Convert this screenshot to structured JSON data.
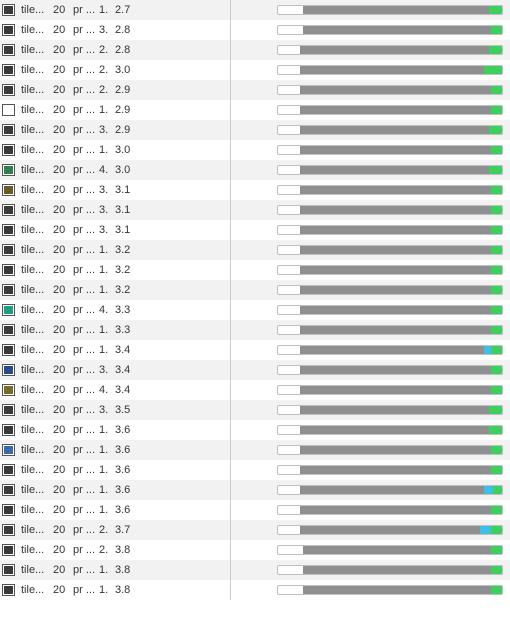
{
  "colors": {
    "row_alt_bg": "#f2f2f2",
    "bar_border": "#bfbfbf",
    "bar_grey": "#8f8f8f",
    "bar_green": "#3fcf5f",
    "bar_blue": "#3fbfe8",
    "divider": "#c8c8d8"
  },
  "columns": [
    "icon",
    "name",
    "date",
    "app",
    "c4",
    "c5",
    "progress"
  ],
  "rows": [
    {
      "thumb": "#3a3a3a",
      "name": "tile...",
      "date": "20",
      "app": "pr ...",
      "c4": "1.",
      "c5": "2.7",
      "lead": 11,
      "grey": 83,
      "green": 6,
      "blue": 0
    },
    {
      "thumb": "#3a3a3a",
      "name": "tile...",
      "date": "20",
      "app": "pr ...",
      "c4": "3.",
      "c5": "2.8",
      "lead": 11,
      "grey": 84,
      "green": 5,
      "blue": 0
    },
    {
      "thumb": "#3a3a3a",
      "name": "tile...",
      "date": "20",
      "app": "pr ...",
      "c4": "2.",
      "c5": "2.8",
      "lead": 10,
      "grey": 84,
      "green": 6,
      "blue": 0
    },
    {
      "thumb": "#3a3a3a",
      "name": "tile...",
      "date": "20",
      "app": "pr ...",
      "c4": "2.",
      "c5": "3.0",
      "lead": 10,
      "grey": 82,
      "green": 8,
      "blue": 0
    },
    {
      "thumb": "#3a3a3a",
      "name": "tile...",
      "date": "20",
      "app": "pr ...",
      "c4": "2.",
      "c5": "2.9",
      "lead": 10,
      "grey": 85,
      "green": 5,
      "blue": 0
    },
    {
      "thumb": "#ffffff",
      "name": "tile...",
      "date": "20",
      "app": "pr ...",
      "c4": "1.",
      "c5": "2.9",
      "lead": 10,
      "grey": 85,
      "green": 5,
      "blue": 0
    },
    {
      "thumb": "#3a3a3a",
      "name": "tile...",
      "date": "20",
      "app": "pr ...",
      "c4": "3.",
      "c5": "2.9",
      "lead": 10,
      "grey": 84,
      "green": 6,
      "blue": 0
    },
    {
      "thumb": "#3a3a3a",
      "name": "tile...",
      "date": "20",
      "app": "pr ...",
      "c4": "1.",
      "c5": "3.0",
      "lead": 10,
      "grey": 85,
      "green": 5,
      "blue": 0
    },
    {
      "thumb": "#2e7e4e",
      "name": "tile...",
      "date": "20",
      "app": "pr ...",
      "c4": "4.",
      "c5": "3.0",
      "lead": 10,
      "grey": 84,
      "green": 6,
      "blue": 0
    },
    {
      "thumb": "#6b5a2a",
      "name": "tile...",
      "date": "20",
      "app": "pr ...",
      "c4": "3.",
      "c5": "3.1",
      "lead": 10,
      "grey": 85,
      "green": 5,
      "blue": 0
    },
    {
      "thumb": "#3a3a3a",
      "name": "tile...",
      "date": "20",
      "app": "pr ...",
      "c4": "3.",
      "c5": "3.1",
      "lead": 10,
      "grey": 85,
      "green": 5,
      "blue": 0
    },
    {
      "thumb": "#3a3a3a",
      "name": "tile...",
      "date": "20",
      "app": "pr ...",
      "c4": "3.",
      "c5": "3.1",
      "lead": 10,
      "grey": 85,
      "green": 5,
      "blue": 0
    },
    {
      "thumb": "#3a3a3a",
      "name": "tile...",
      "date": "20",
      "app": "pr ...",
      "c4": "1.",
      "c5": "3.2",
      "lead": 10,
      "grey": 85,
      "green": 5,
      "blue": 0
    },
    {
      "thumb": "#3a3a3a",
      "name": "tile...",
      "date": "20",
      "app": "pr ...",
      "c4": "1.",
      "c5": "3.2",
      "lead": 10,
      "grey": 85,
      "green": 5,
      "blue": 0
    },
    {
      "thumb": "#3a3a3a",
      "name": "tile...",
      "date": "20",
      "app": "pr ...",
      "c4": "1.",
      "c5": "3.2",
      "lead": 10,
      "grey": 85,
      "green": 5,
      "blue": 0
    },
    {
      "thumb": "#1e9e7e",
      "name": "tile...",
      "date": "20",
      "app": "pr ...",
      "c4": "4.",
      "c5": "3.3",
      "lead": 10,
      "grey": 85,
      "green": 5,
      "blue": 0
    },
    {
      "thumb": "#3a3a3a",
      "name": "tile...",
      "date": "20",
      "app": "pr ...",
      "c4": "1.",
      "c5": "3.3",
      "lead": 10,
      "grey": 85,
      "green": 5,
      "blue": 0
    },
    {
      "thumb": "#3a3a3a",
      "name": "tile...",
      "date": "20",
      "app": "pr ...",
      "c4": "1.",
      "c5": "3.4",
      "lead": 10,
      "grey": 82,
      "green": 5,
      "blue": 3
    },
    {
      "thumb": "#2a4a8a",
      "name": "tile...",
      "date": "20",
      "app": "pr ...",
      "c4": "3.",
      "c5": "3.4",
      "lead": 10,
      "grey": 85,
      "green": 5,
      "blue": 0
    },
    {
      "thumb": "#7a6a2a",
      "name": "tile...",
      "date": "20",
      "app": "pr ...",
      "c4": "4.",
      "c5": "3.4",
      "lead": 10,
      "grey": 85,
      "green": 5,
      "blue": 0
    },
    {
      "thumb": "#3a3a3a",
      "name": "tile...",
      "date": "20",
      "app": "pr ...",
      "c4": "3.",
      "c5": "3.5",
      "lead": 10,
      "grey": 84,
      "green": 6,
      "blue": 0
    },
    {
      "thumb": "#3a3a3a",
      "name": "tile...",
      "date": "20",
      "app": "pr ...",
      "c4": "1.",
      "c5": "3.6",
      "lead": 10,
      "grey": 84,
      "green": 6,
      "blue": 0
    },
    {
      "thumb": "#3a6aaa",
      "name": "tile...",
      "date": "20",
      "app": "pr ...",
      "c4": "1.",
      "c5": "3.6",
      "lead": 10,
      "grey": 85,
      "green": 5,
      "blue": 0
    },
    {
      "thumb": "#3a3a3a",
      "name": "tile...",
      "date": "20",
      "app": "pr ...",
      "c4": "1.",
      "c5": "3.6",
      "lead": 10,
      "grey": 85,
      "green": 5,
      "blue": 0
    },
    {
      "thumb": "#3a3a3a",
      "name": "tile...",
      "date": "20",
      "app": "pr ...",
      "c4": "1.",
      "c5": "3.6",
      "lead": 10,
      "grey": 82,
      "green": 4,
      "blue": 4
    },
    {
      "thumb": "#3a3a3a",
      "name": "tile...",
      "date": "20",
      "app": "pr ...",
      "c4": "1.",
      "c5": "3.6",
      "lead": 10,
      "grey": 85,
      "green": 5,
      "blue": 0
    },
    {
      "thumb": "#3a3a3a",
      "name": "tile...",
      "date": "20",
      "app": "pr ...",
      "c4": "2.",
      "c5": "3.7",
      "lead": 10,
      "grey": 80,
      "green": 5,
      "blue": 5
    },
    {
      "thumb": "#3a3a3a",
      "name": "tile...",
      "date": "20",
      "app": "pr ...",
      "c4": "2.",
      "c5": "3.8",
      "lead": 11,
      "grey": 84,
      "green": 5,
      "blue": 0
    },
    {
      "thumb": "#3a3a3a",
      "name": "tile...",
      "date": "20",
      "app": "pr ...",
      "c4": "1.",
      "c5": "3.8",
      "lead": 11,
      "grey": 84,
      "green": 5,
      "blue": 0
    },
    {
      "thumb": "#3a3a3a",
      "name": "tile...",
      "date": "20",
      "app": "pr ...",
      "c4": "1.",
      "c5": "3.8",
      "lead": 11,
      "grey": 84,
      "green": 5,
      "blue": 0
    }
  ]
}
